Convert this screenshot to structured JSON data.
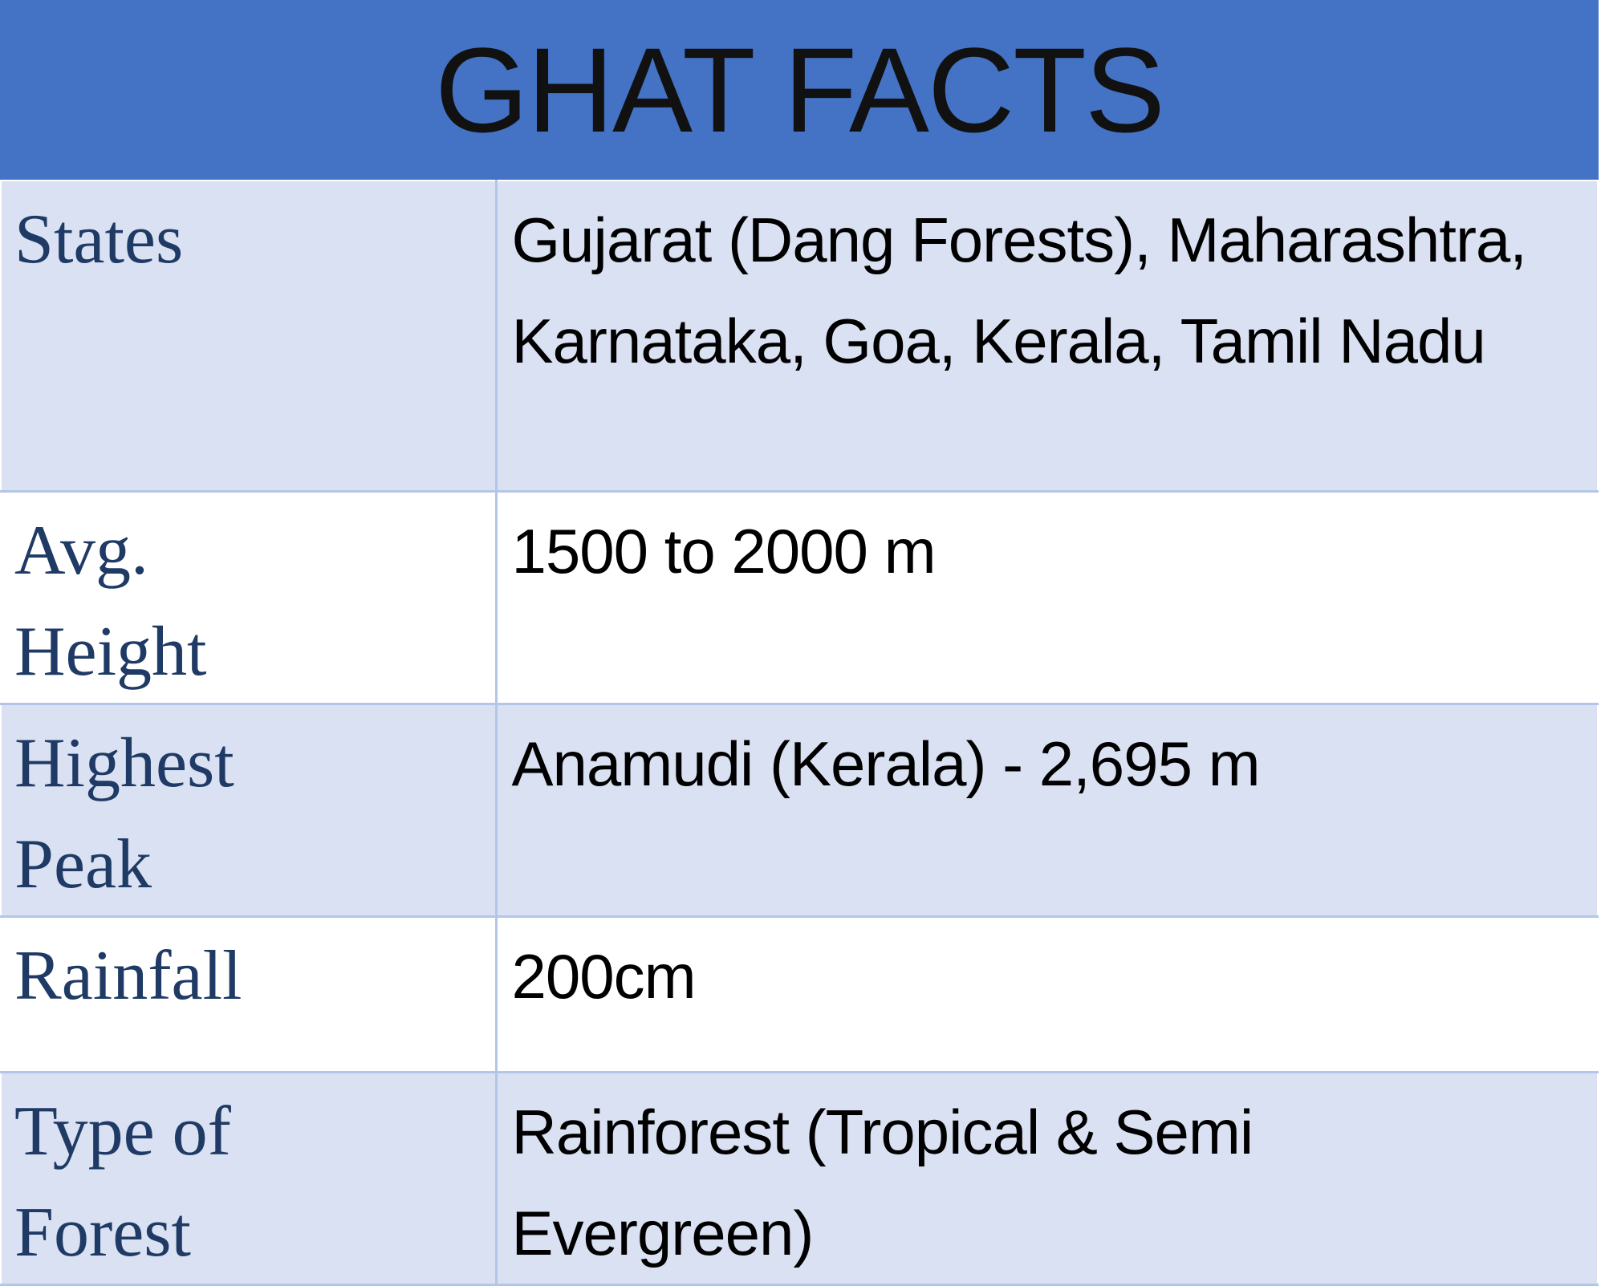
{
  "header": {
    "title": "GHAT FACTS"
  },
  "table": {
    "rows": [
      [
        "States",
        "Gujarat (Dang Forests), Maharashtra, Karnataka, Goa, Kerala, Tamil Nadu"
      ],
      [
        "Avg. Height",
        "1500 to 2000 m"
      ],
      [
        "Highest Peak",
        "Anamudi (Kerala) - 2,695 m"
      ],
      [
        "Rainfall",
        "200cm"
      ],
      [
        "Type of Forest",
        "Rainforest (Tropical & Semi Evergreen)"
      ]
    ]
  }
}
